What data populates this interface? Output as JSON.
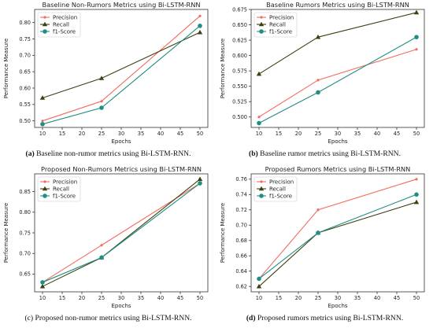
{
  "colors": {
    "precision": "#f26b5e",
    "recall": "#3f3f12",
    "f1": "#1e8f82"
  },
  "panels": [
    {
      "caption_letter": "(a)",
      "caption_text": "Baseline non-rumor metrics using Bi-LSTM-RNN.",
      "caption_letter_bold": true
    },
    {
      "caption_letter": "(b)",
      "caption_text": "Baseline rumor metrics using Bi-LSTM-RNN.",
      "caption_letter_bold": true
    },
    {
      "caption_letter": "(c)",
      "caption_text": "Proposed non-rumor metrics using Bi-LSTM-RNN.",
      "caption_letter_bold": false
    },
    {
      "caption_letter": "(d)",
      "caption_text": "Proposed rumors metrics using Bi-LSTM-RNN.",
      "caption_letter_bold": true
    }
  ],
  "chart_data": [
    {
      "type": "line",
      "title": "Baseline Non-Rumors Metrics using Bi-LSTM-RNN",
      "xlabel": "Epochs",
      "ylabel": "Performance Measure",
      "x": [
        10,
        25,
        50
      ],
      "xticks": [
        "10",
        "15",
        "20",
        "25",
        "30",
        "35",
        "40",
        "45",
        "50"
      ],
      "ylim": [
        0.48,
        0.84
      ],
      "yticks": [
        "0.50",
        "0.55",
        "0.60",
        "0.65",
        "0.70",
        "0.75",
        "0.80"
      ],
      "legend": "upper left",
      "grid": false,
      "series": [
        {
          "name": "Precision",
          "key": "precision",
          "marker": "dot",
          "values": [
            0.5,
            0.56,
            0.82
          ]
        },
        {
          "name": "Recall",
          "key": "recall",
          "marker": "triangle",
          "values": [
            0.57,
            0.63,
            0.77
          ]
        },
        {
          "name": "f1-Score",
          "key": "f1",
          "marker": "circle",
          "values": [
            0.49,
            0.54,
            0.79
          ]
        }
      ]
    },
    {
      "type": "line",
      "title": "Baseline Rumors Metrics using Bi-LSTM-RNN",
      "xlabel": "Epochs",
      "ylabel": "Performance Measure",
      "x": [
        10,
        25,
        50
      ],
      "xticks": [
        "10",
        "15",
        "20",
        "25",
        "30",
        "35",
        "40",
        "45",
        "50"
      ],
      "ylim": [
        0.483,
        0.675
      ],
      "yticks": [
        "0.500",
        "0.525",
        "0.550",
        "0.575",
        "0.600",
        "0.625",
        "0.650",
        "0.675"
      ],
      "legend": "upper left",
      "grid": false,
      "series": [
        {
          "name": "Precision",
          "key": "precision",
          "marker": "dot",
          "values": [
            0.5,
            0.56,
            0.61
          ]
        },
        {
          "name": "Recall",
          "key": "recall",
          "marker": "triangle",
          "values": [
            0.57,
            0.63,
            0.67
          ]
        },
        {
          "name": "f1-Score",
          "key": "f1",
          "marker": "circle",
          "values": [
            0.49,
            0.54,
            0.63
          ]
        }
      ]
    },
    {
      "type": "line",
      "title": "Proposed Non-Rumors Metrics using Bi-LSTM-RNN",
      "xlabel": "Epochs",
      "ylabel": "Performance Measure",
      "x": [
        10,
        25,
        50
      ],
      "xticks": [
        "10",
        "15",
        "20",
        "25",
        "30",
        "35",
        "40",
        "45",
        "50"
      ],
      "ylim": [
        0.607,
        0.893
      ],
      "yticks": [
        "0.65",
        "0.70",
        "0.75",
        "0.80",
        "0.85"
      ],
      "legend": "upper left",
      "grid": false,
      "series": [
        {
          "name": "Precision",
          "key": "precision",
          "marker": "dot",
          "values": [
            0.63,
            0.72,
            0.87
          ]
        },
        {
          "name": "Recall",
          "key": "recall",
          "marker": "triangle",
          "values": [
            0.62,
            0.69,
            0.88
          ]
        },
        {
          "name": "f1-Score",
          "key": "f1",
          "marker": "circle",
          "values": [
            0.63,
            0.69,
            0.87
          ]
        }
      ]
    },
    {
      "type": "line",
      "title": "Proposed Rumors Metrics using Bi-LSTM-RNN",
      "xlabel": "Epochs",
      "ylabel": "Performance Measure",
      "x": [
        10,
        25,
        50
      ],
      "xticks": [
        "10",
        "15",
        "20",
        "25",
        "30",
        "35",
        "40",
        "45",
        "50"
      ],
      "ylim": [
        0.613,
        0.767
      ],
      "yticks": [
        "0.62",
        "0.64",
        "0.66",
        "0.68",
        "0.70",
        "0.72",
        "0.74",
        "0.76"
      ],
      "legend": "upper left",
      "grid": false,
      "series": [
        {
          "name": "Precision",
          "key": "precision",
          "marker": "dot",
          "values": [
            0.63,
            0.72,
            0.76
          ]
        },
        {
          "name": "Recall",
          "key": "recall",
          "marker": "triangle",
          "values": [
            0.62,
            0.69,
            0.73
          ]
        },
        {
          "name": "f1-Score",
          "key": "f1",
          "marker": "circle",
          "values": [
            0.63,
            0.69,
            0.74
          ]
        }
      ]
    }
  ]
}
